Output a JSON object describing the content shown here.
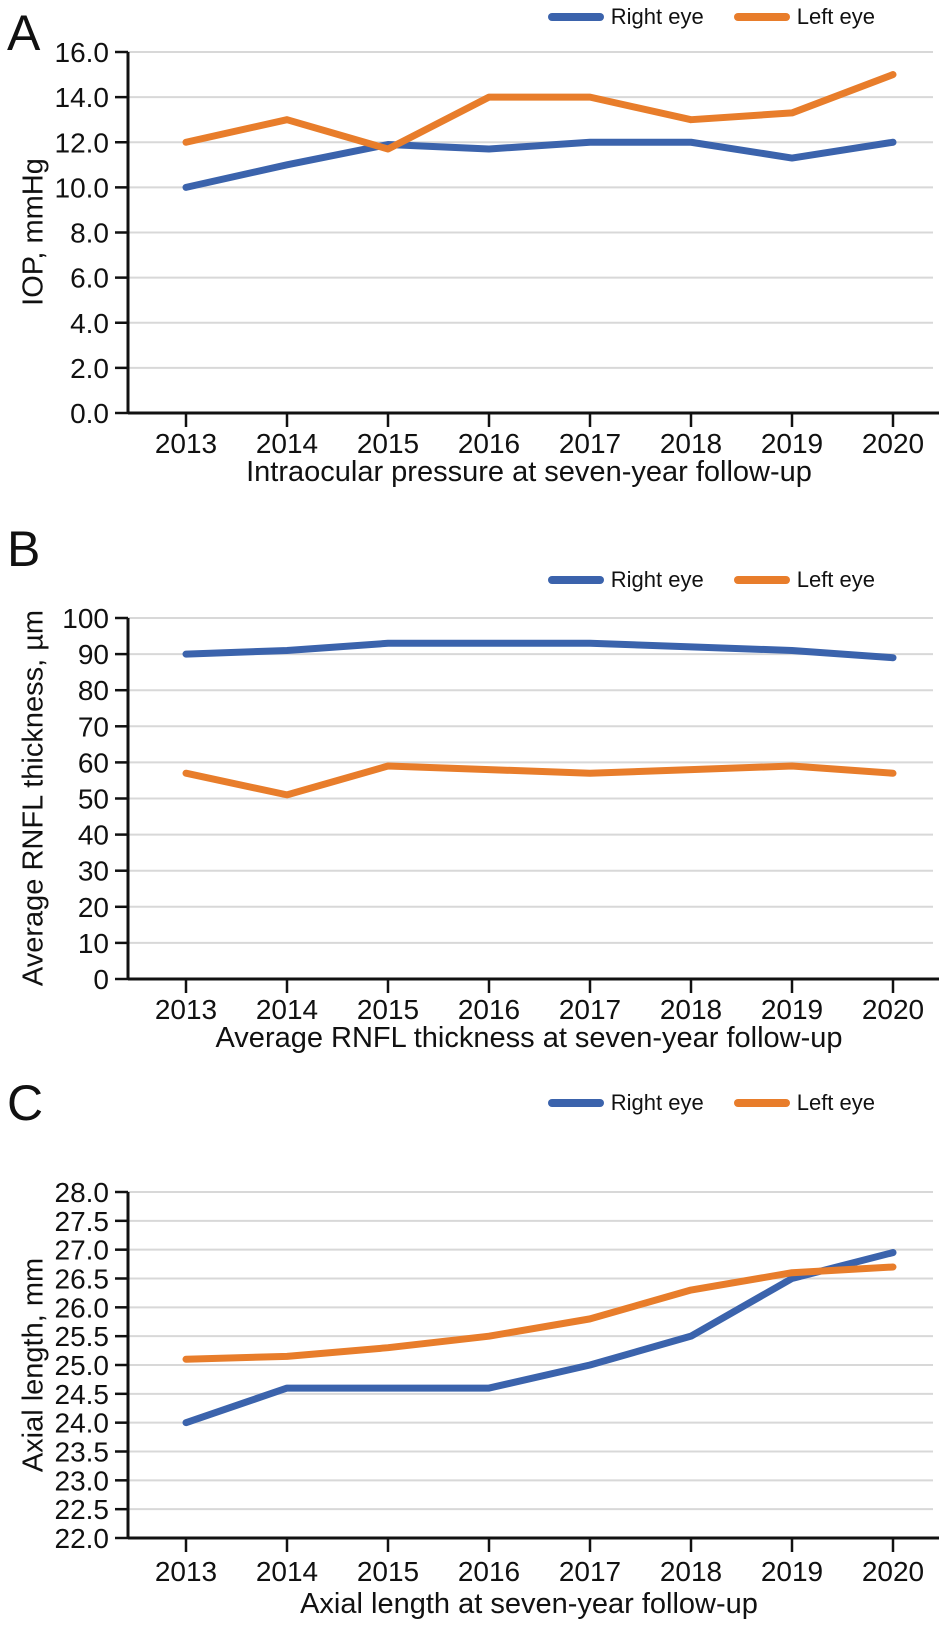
{
  "chart_data": [
    {
      "panel": "A",
      "type": "line",
      "title": "Intraocular pressure at seven-year follow-up",
      "xlabel": "",
      "ylabel": "IOP, mmHg",
      "categories": [
        "2013",
        "2014",
        "2015",
        "2016",
        "2017",
        "2018",
        "2019",
        "2020"
      ],
      "y_ticks": [
        "16.0",
        "14.0",
        "12.0",
        "10.0",
        "8.0",
        "6.0",
        "4.0",
        "2.0",
        "0.0"
      ],
      "ylim": [
        0,
        16
      ],
      "grid": "horizontal",
      "legend_position": "top-right",
      "series": [
        {
          "name": "Right eye",
          "color": "#3b63ac",
          "values": [
            10.0,
            11.0,
            11.9,
            11.7,
            12.0,
            12.0,
            11.3,
            12.0
          ]
        },
        {
          "name": "Left eye",
          "color": "#e87d2b",
          "values": [
            12.0,
            13.0,
            11.7,
            14.0,
            14.0,
            13.0,
            13.3,
            15.0
          ]
        }
      ]
    },
    {
      "panel": "B",
      "type": "line",
      "title": "Average RNFL thickness at seven-year follow-up",
      "xlabel": "",
      "ylabel": "Average RNFL thickness, µm",
      "categories": [
        "2013",
        "2014",
        "2015",
        "2016",
        "2017",
        "2018",
        "2019",
        "2020"
      ],
      "y_ticks": [
        "100",
        "90",
        "80",
        "70",
        "60",
        "50",
        "40",
        "30",
        "20",
        "10",
        "0"
      ],
      "ylim": [
        0,
        100
      ],
      "grid": "horizontal",
      "legend_position": "top-right",
      "series": [
        {
          "name": "Right eye",
          "color": "#3b63ac",
          "values": [
            90,
            91,
            93,
            93,
            93,
            92,
            91,
            89
          ]
        },
        {
          "name": "Left eye",
          "color": "#e87d2b",
          "values": [
            57,
            51,
            59,
            58,
            57,
            58,
            59,
            57
          ]
        }
      ]
    },
    {
      "panel": "C",
      "type": "line",
      "title": "Axial length at seven-year follow-up",
      "xlabel": "",
      "ylabel": "Axial length, mm",
      "categories": [
        "2013",
        "2014",
        "2015",
        "2016",
        "2017",
        "2018",
        "2019",
        "2020"
      ],
      "y_ticks": [
        "28.0",
        "27.5",
        "27.0",
        "26.5",
        "26.0",
        "25.5",
        "25.0",
        "24.5",
        "24.0",
        "23.5",
        "23.0",
        "22.5",
        "22.0"
      ],
      "ylim": [
        22,
        28
      ],
      "grid": "horizontal",
      "legend_position": "top-right",
      "series": [
        {
          "name": "Right eye",
          "color": "#3b63ac",
          "values": [
            24.0,
            24.6,
            24.6,
            24.6,
            25.0,
            25.5,
            26.5,
            26.95
          ]
        },
        {
          "name": "Left eye",
          "color": "#e87d2b",
          "values": [
            25.1,
            25.15,
            25.3,
            25.5,
            25.8,
            26.3,
            26.6,
            26.7
          ]
        }
      ]
    }
  ]
}
